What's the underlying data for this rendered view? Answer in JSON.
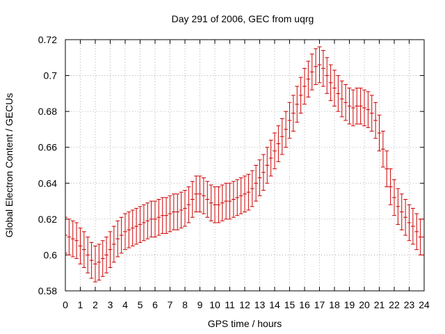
{
  "chart_data": {
    "type": "errorbar",
    "title": "Day 291 of 2006, GEC from uqrg",
    "xlabel": "GPS time / hours",
    "ylabel": "Global Electron Content / GECUs",
    "xlim": [
      0,
      24
    ],
    "ylim": [
      0.58,
      0.72
    ],
    "grid": true,
    "x_ticks": [
      0,
      1,
      2,
      3,
      4,
      5,
      6,
      7,
      8,
      9,
      10,
      11,
      12,
      13,
      14,
      15,
      16,
      17,
      18,
      19,
      20,
      21,
      22,
      23,
      24
    ],
    "x_tick_labels": [
      "0",
      "1",
      "2",
      "3",
      "4",
      "5",
      "6",
      "7",
      "8",
      "9",
      "10",
      "11",
      "12",
      "13",
      "14",
      "15",
      "16",
      "17",
      "18",
      "19",
      "20",
      "21",
      "22",
      "23",
      "24"
    ],
    "y_ticks": [
      0.58,
      0.6,
      0.62,
      0.64,
      0.66,
      0.68,
      0.7,
      0.72
    ],
    "y_tick_labels": [
      "0.58",
      "0.6",
      "0.62",
      "0.64",
      "0.66",
      "0.68",
      "0.7",
      "0.72"
    ],
    "series": [
      {
        "name": "GEC",
        "color": "#cc0000",
        "error": 0.01,
        "x": [
          0,
          0.25,
          0.5,
          0.75,
          1,
          1.25,
          1.5,
          1.75,
          2,
          2.25,
          2.5,
          2.75,
          3,
          3.25,
          3.5,
          3.75,
          4,
          4.25,
          4.5,
          4.75,
          5,
          5.25,
          5.5,
          5.75,
          6,
          6.25,
          6.5,
          6.75,
          7,
          7.25,
          7.5,
          7.75,
          8,
          8.25,
          8.5,
          8.75,
          9,
          9.25,
          9.5,
          9.75,
          10,
          10.25,
          10.5,
          10.75,
          11,
          11.25,
          11.5,
          11.75,
          12,
          12.25,
          12.5,
          12.75,
          13,
          13.25,
          13.5,
          13.75,
          14,
          14.25,
          14.5,
          14.75,
          15,
          15.25,
          15.5,
          15.75,
          16,
          16.25,
          16.5,
          16.75,
          17,
          17.25,
          17.5,
          17.75,
          18,
          18.25,
          18.5,
          18.75,
          19,
          19.25,
          19.5,
          19.75,
          20,
          20.25,
          20.5,
          20.75,
          21,
          21.25,
          21.5,
          21.75,
          22,
          22.25,
          22.5,
          22.75,
          23,
          23.25,
          23.5,
          23.75,
          24
        ],
        "y": [
          0.611,
          0.61,
          0.609,
          0.608,
          0.605,
          0.603,
          0.6,
          0.597,
          0.595,
          0.596,
          0.598,
          0.6,
          0.603,
          0.606,
          0.609,
          0.611,
          0.613,
          0.614,
          0.615,
          0.616,
          0.617,
          0.618,
          0.619,
          0.62,
          0.62,
          0.621,
          0.622,
          0.622,
          0.623,
          0.624,
          0.624,
          0.625,
          0.626,
          0.628,
          0.631,
          0.634,
          0.634,
          0.633,
          0.631,
          0.629,
          0.628,
          0.628,
          0.629,
          0.63,
          0.63,
          0.631,
          0.632,
          0.633,
          0.634,
          0.635,
          0.637,
          0.64,
          0.643,
          0.646,
          0.65,
          0.654,
          0.658,
          0.662,
          0.666,
          0.67,
          0.675,
          0.679,
          0.684,
          0.689,
          0.694,
          0.698,
          0.702,
          0.705,
          0.706,
          0.704,
          0.7,
          0.696,
          0.693,
          0.69,
          0.687,
          0.685,
          0.683,
          0.682,
          0.683,
          0.683,
          0.682,
          0.681,
          0.679,
          0.675,
          0.668,
          0.659,
          0.648,
          0.638,
          0.632,
          0.627,
          0.624,
          0.621,
          0.618,
          0.616,
          0.613,
          0.61,
          0.61
        ]
      }
    ]
  }
}
